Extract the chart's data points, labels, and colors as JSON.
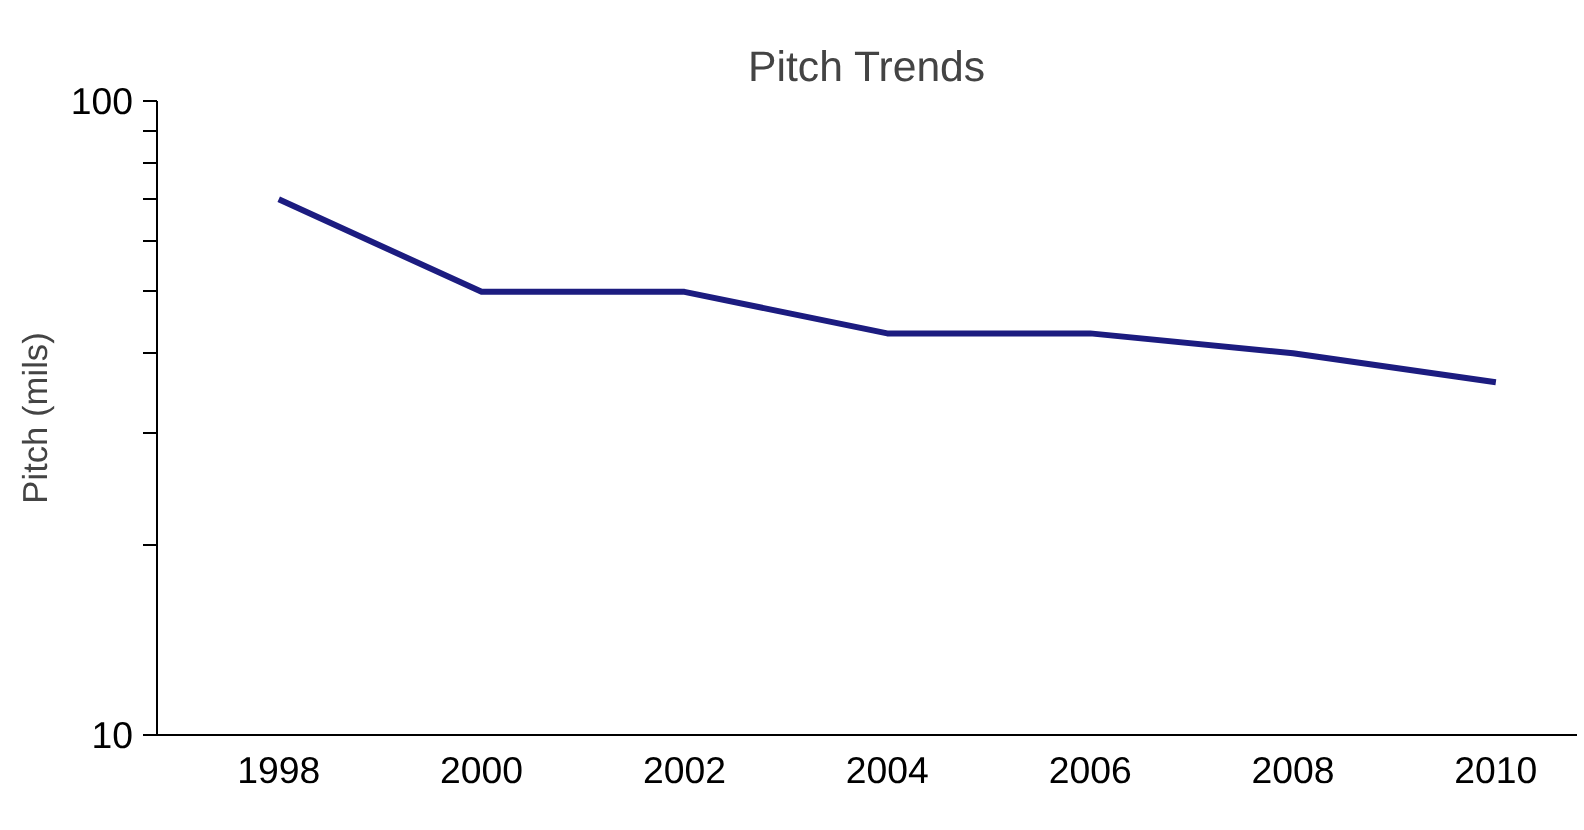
{
  "chart_data": {
    "type": "line",
    "title": "Pitch Trends",
    "ylabel": "Pitch (mils)",
    "categories": [
      "1998",
      "2000",
      "2002",
      "2004",
      "2006",
      "2008",
      "2010"
    ],
    "series": [
      {
        "color": "#1c1c80",
        "values": [
          70,
          50,
          50,
          43,
          43,
          40,
          36
        ]
      }
    ],
    "log": "y",
    "ylim": [
      10,
      100
    ],
    "yticks": [
      10,
      {
        "value": 20,
        "label": null
      },
      {
        "value": 30,
        "label": null
      },
      {
        "value": 40,
        "label": null
      },
      {
        "value": 50,
        "label": null
      },
      {
        "value": 60,
        "label": null
      },
      {
        "value": 70,
        "label": null
      },
      {
        "value": 80,
        "label": null
      },
      {
        "value": 90,
        "label": null
      },
      100
    ],
    "grid": false,
    "marker": "none",
    "line_style": "solid"
  }
}
